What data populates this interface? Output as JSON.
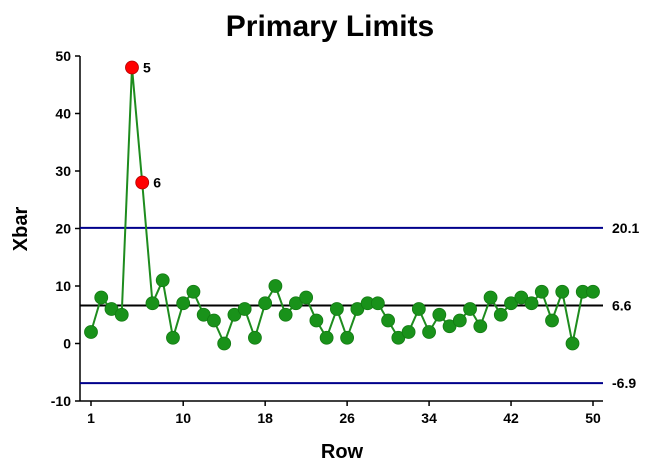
{
  "chart_data": {
    "type": "line",
    "title": "Primary Limits",
    "xlabel": "Row",
    "ylabel": "Xbar",
    "xlim": [
      1,
      50
    ],
    "ylim": [
      -10,
      50
    ],
    "xticks": [
      1,
      10,
      18,
      26,
      34,
      42,
      50
    ],
    "yticks": [
      -10,
      0,
      10,
      20,
      30,
      40,
      50
    ],
    "x": [
      1,
      2,
      3,
      4,
      5,
      6,
      7,
      8,
      9,
      10,
      11,
      12,
      13,
      14,
      15,
      16,
      17,
      18,
      19,
      20,
      21,
      22,
      23,
      24,
      25,
      26,
      27,
      28,
      29,
      30,
      31,
      32,
      33,
      34,
      35,
      36,
      37,
      38,
      39,
      40,
      41,
      42,
      43,
      44,
      45,
      46,
      47,
      48,
      49,
      50
    ],
    "values": [
      2,
      8,
      6,
      5,
      48,
      28,
      7,
      11,
      1,
      7,
      9,
      5,
      4,
      0,
      5,
      6,
      1,
      7,
      10,
      5,
      7,
      8,
      4,
      1,
      6,
      1,
      6,
      7,
      7,
      4,
      1,
      2,
      6,
      2,
      5,
      3,
      4,
      6,
      3,
      8,
      5,
      7,
      8,
      7,
      9,
      4,
      9,
      0,
      9,
      9
    ],
    "center_line": {
      "value": 6.6,
      "label": "6.6"
    },
    "upper_limit": {
      "value": 20.1,
      "label": "20.1"
    },
    "lower_limit": {
      "value": -6.9,
      "label": "-6.9"
    },
    "out_of_control": [
      {
        "x": 5,
        "label": "5"
      },
      {
        "x": 6,
        "label": "6"
      }
    ],
    "colors": {
      "series": "#1e8c1e",
      "marker": "#19921a",
      "out_of_control": "#ff0000",
      "center_line": "#000000",
      "limit_lines": "#00008b",
      "axes": "#000000"
    },
    "grid": false
  }
}
